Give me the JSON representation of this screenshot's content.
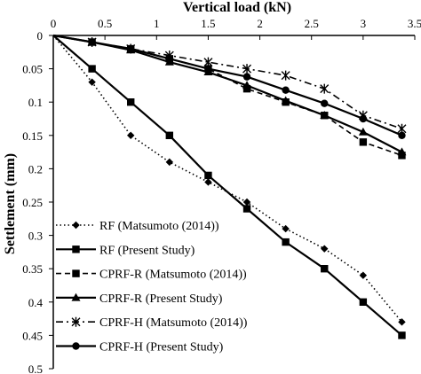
{
  "chart_data": {
    "type": "line",
    "xlabel": "Vertical load (kN)",
    "ylabel": "Settlement (mm)",
    "xlim": [
      0,
      3.5
    ],
    "ylim": [
      0,
      0.5
    ],
    "y_inverted": true,
    "x_axis_position": "top",
    "grid": false,
    "legend_position": "bottom-left",
    "x_ticks": [
      "0",
      "0.5",
      "1",
      "1.5",
      "2",
      "2.5",
      "3",
      "3.5"
    ],
    "y_ticks": [
      "0",
      "0.05",
      "0.1",
      "0.15",
      "0.2",
      "0.25",
      "0.3",
      "0.35",
      "0.4",
      "0.45",
      "0.5"
    ],
    "series": [
      {
        "name": "RF (Matsumoto (2014))",
        "marker": "diamond",
        "dash": "dotted",
        "color": "#000000",
        "x": [
          0,
          0.375,
          0.75,
          1.125,
          1.5,
          1.875,
          2.25,
          2.625,
          3.0,
          3.375
        ],
        "y": [
          0,
          0.07,
          0.15,
          0.19,
          0.22,
          0.25,
          0.29,
          0.32,
          0.36,
          0.43
        ]
      },
      {
        "name": "RF (Present Study)",
        "marker": "square",
        "dash": "solid",
        "color": "#000000",
        "x": [
          0,
          0.375,
          0.75,
          1.125,
          1.5,
          1.875,
          2.25,
          2.625,
          3.0,
          3.375
        ],
        "y": [
          0,
          0.05,
          0.1,
          0.15,
          0.21,
          0.26,
          0.31,
          0.35,
          0.4,
          0.45
        ]
      },
      {
        "name": "CPRF-R (Matsumoto (2014))",
        "marker": "square",
        "dash": "dashed",
        "color": "#000000",
        "x": [
          0,
          0.375,
          0.75,
          1.125,
          1.5,
          1.875,
          2.25,
          2.625,
          3.0,
          3.375
        ],
        "y": [
          0,
          0.01,
          0.02,
          0.035,
          0.05,
          0.08,
          0.1,
          0.12,
          0.16,
          0.18
        ]
      },
      {
        "name": "CPRF-R (Present Study)",
        "marker": "triangle",
        "dash": "solid",
        "color": "#000000",
        "x": [
          0,
          0.375,
          0.75,
          1.125,
          1.5,
          1.875,
          2.25,
          2.625,
          3.0,
          3.375
        ],
        "y": [
          0,
          0.01,
          0.022,
          0.04,
          0.055,
          0.075,
          0.098,
          0.12,
          0.145,
          0.175
        ]
      },
      {
        "name": "CPRF-H (Matsumoto (2014))",
        "marker": "star",
        "dash": "dashdot",
        "color": "#000000",
        "x": [
          0,
          0.375,
          0.75,
          1.125,
          1.5,
          1.875,
          2.25,
          2.625,
          3.0,
          3.375
        ],
        "y": [
          0,
          0.01,
          0.02,
          0.03,
          0.04,
          0.05,
          0.06,
          0.08,
          0.12,
          0.14
        ]
      },
      {
        "name": "CPRF-H (Present Study)",
        "marker": "circle",
        "dash": "solid",
        "color": "#000000",
        "x": [
          0,
          0.375,
          0.75,
          1.125,
          1.5,
          1.875,
          2.25,
          2.625,
          3.0,
          3.375
        ],
        "y": [
          0,
          0.01,
          0.02,
          0.035,
          0.05,
          0.062,
          0.082,
          0.102,
          0.125,
          0.15
        ]
      }
    ]
  }
}
